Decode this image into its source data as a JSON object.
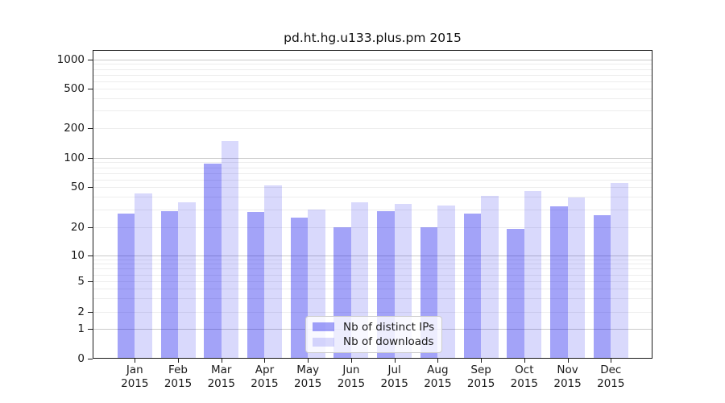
{
  "chart_data": {
    "type": "bar",
    "title": "pd.ht.hg.u133.plus.pm 2015",
    "categories": [
      "Jan 2015",
      "Feb 2015",
      "Mar 2015",
      "Apr 2015",
      "May 2015",
      "Jun 2015",
      "Jul 2015",
      "Aug 2015",
      "Sep 2015",
      "Oct 2015",
      "Nov 2015",
      "Dec 2015"
    ],
    "x_tick_labels": {
      "months": [
        "Jan",
        "Feb",
        "Mar",
        "Apr",
        "May",
        "Jun",
        "Jul",
        "Aug",
        "Sep",
        "Oct",
        "Nov",
        "Dec"
      ],
      "year": "2015"
    },
    "series": [
      {
        "name": "Nb of distinct IPs",
        "color": "rgba(0,0,235,0.36)",
        "color_hex_over_white": "#a4a4f3",
        "values": [
          27,
          29,
          87,
          28,
          25,
          20,
          29,
          20,
          27,
          19,
          32,
          26
        ]
      },
      {
        "name": "Nb of downloads",
        "color": "rgba(0,0,235,0.15)",
        "color_hex_over_white": "#d8d8fa",
        "values": [
          43,
          35,
          150,
          52,
          30,
          35,
          34,
          33,
          41,
          46,
          39,
          55
        ]
      }
    ],
    "y_axis": {
      "scale": "asinh-log",
      "ticks": [
        0,
        1,
        2,
        5,
        10,
        20,
        50,
        100,
        200,
        500,
        1000
      ],
      "range": [
        0,
        1000
      ],
      "major_gridlines": [
        1,
        10,
        100,
        1000
      ]
    },
    "grid": "on",
    "legend_position": "lower center",
    "colors": {
      "grid_major": "#cbcbcb",
      "grid_minor": "#ededed",
      "axis": "#1a1a1a",
      "background": "#ffffff"
    }
  }
}
